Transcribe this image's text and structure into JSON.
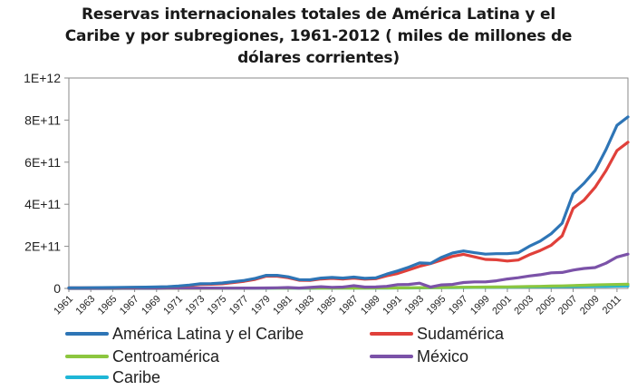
{
  "chart_data": {
    "type": "line",
    "title_lines": [
      "Reservas internacionales totales de América Latina y el",
      "Caribe y por subregiones, 1961-2012 ( miles de millones de",
      "dólares corrientes)"
    ],
    "xlabel": "",
    "ylabel": "",
    "ylim": [
      0,
      1000000000000
    ],
    "ytick_labels": [
      "0",
      "2E+11",
      "4E+11",
      "6E+11",
      "8E+11",
      "1E+12"
    ],
    "ytick_values": [
      0,
      200000000000,
      400000000000,
      600000000000,
      800000000000,
      1000000000000
    ],
    "x": [
      1961,
      1962,
      1963,
      1964,
      1965,
      1966,
      1967,
      1968,
      1969,
      1970,
      1971,
      1972,
      1973,
      1974,
      1975,
      1976,
      1977,
      1978,
      1979,
      1980,
      1981,
      1982,
      1983,
      1984,
      1985,
      1986,
      1987,
      1988,
      1989,
      1990,
      1991,
      1992,
      1993,
      1994,
      1995,
      1996,
      1997,
      1998,
      1999,
      2000,
      2001,
      2002,
      2003,
      2004,
      2005,
      2006,
      2007,
      2008,
      2009,
      2010,
      2011,
      2012
    ],
    "xtick_labels": [
      "1961",
      "1963",
      "1965",
      "1967",
      "1969",
      "1971",
      "1973",
      "1975",
      "1977",
      "1979",
      "1981",
      "1983",
      "1985",
      "1987",
      "1989",
      "1991",
      "1993",
      "1995",
      "1997",
      "1999",
      "2001",
      "2003",
      "2005",
      "2007",
      "2009",
      "2011"
    ],
    "grid": false,
    "legend_position": "bottom",
    "series": [
      {
        "name": "América Latina y el Caribe",
        "color": "#2e75b6",
        "values": [
          3000000000.0,
          3000000000.0,
          3500000000.0,
          4000000000.0,
          4500000000.0,
          5000000000.0,
          5500000000.0,
          6000000000.0,
          7000000000.0,
          8000000000.0,
          11000000000.0,
          16000000000.0,
          22000000000.0,
          23000000000.0,
          26000000000.0,
          32000000000.0,
          38000000000.0,
          48000000000.0,
          62000000000.0,
          62000000000.0,
          55000000000.0,
          42000000000.0,
          41000000000.0,
          49000000000.0,
          52000000000.0,
          49000000000.0,
          54000000000.0,
          48000000000.0,
          50000000000.0,
          68000000000.0,
          83000000000.0,
          101000000000.0,
          121000000000.0,
          119000000000.0,
          148000000000.0,
          168000000000.0,
          178000000000.0,
          170000000000.0,
          163000000000.0,
          165000000000.0,
          165000000000.0,
          170000000000.0,
          200000000000.0,
          225000000000.0,
          260000000000.0,
          310000000000.0,
          450000000000.0,
          500000000000.0,
          560000000000.0,
          660000000000.0,
          775000000000.0,
          815000000000.0
        ]
      },
      {
        "name": "Sudamérica",
        "color": "#e0403a",
        "values": [
          2500000000.0,
          2500000000.0,
          3000000000.0,
          3000000000.0,
          3500000000.0,
          4000000000.0,
          4500000000.0,
          5000000000.0,
          6000000000.0,
          7000000000.0,
          10000000000.0,
          14000000000.0,
          19000000000.0,
          20000000000.0,
          22000000000.0,
          28000000000.0,
          34000000000.0,
          43000000000.0,
          58000000000.0,
          58000000000.0,
          51000000000.0,
          39000000000.0,
          38000000000.0,
          45000000000.0,
          48000000000.0,
          45000000000.0,
          49000000000.0,
          44000000000.0,
          46000000000.0,
          60000000000.0,
          71000000000.0,
          88000000000.0,
          105000000000.0,
          118000000000.0,
          135000000000.0,
          152000000000.0,
          162000000000.0,
          150000000000.0,
          138000000000.0,
          136000000000.0,
          130000000000.0,
          135000000000.0,
          160000000000.0,
          180000000000.0,
          205000000000.0,
          250000000000.0,
          380000000000.0,
          420000000000.0,
          480000000000.0,
          560000000000.0,
          655000000000.0,
          695000000000.0
        ]
      },
      {
        "name": "Centroamérica",
        "color": "#8cc63f",
        "values": [
          200000000.0,
          200000000.0,
          200000000.0,
          200000000.0,
          200000000.0,
          300000000.0,
          300000000.0,
          300000000.0,
          300000000.0,
          300000000.0,
          400000000.0,
          400000000.0,
          500000000.0,
          600000000.0,
          700000000.0,
          800000000.0,
          1000000000.0,
          1200000000.0,
          1500000000.0,
          1500000000.0,
          1400000000.0,
          1300000000.0,
          1300000000.0,
          1400000000.0,
          1500000000.0,
          1600000000.0,
          1800000000.0,
          1900000000.0,
          2000000000.0,
          2200000000.0,
          2600000000.0,
          3000000000.0,
          3500000000.0,
          4000000000.0,
          4500000000.0,
          5000000000.0,
          5500000000.0,
          6000000000.0,
          6500000000.0,
          7000000000.0,
          7500000000.0,
          8000000000.0,
          9000000000.0,
          10000000000.0,
          11000000000.0,
          12000000000.0,
          14000000000.0,
          15000000000.0,
          17000000000.0,
          18000000000.0,
          19000000000.0,
          20000000000.0
        ]
      },
      {
        "name": "México",
        "color": "#7b52a8",
        "values": [
          500000000.0,
          500000000.0,
          600000000.0,
          600000000.0,
          700000000.0,
          800000000.0,
          800000000.0,
          900000000.0,
          1000000000.0,
          1100000000.0,
          1300000000.0,
          1500000000.0,
          1600000000.0,
          1600000000.0,
          1500000000.0,
          1300000000.0,
          1600000000.0,
          1800000000.0,
          2100000000.0,
          3000000000.0,
          4100000000.0,
          1800000000.0,
          4800000000.0,
          8000000000.0,
          5300000000.0,
          6600000000.0,
          13000000000.0,
          6300000000.0,
          6700000000.0,
          10000000000.0,
          18000000000.0,
          19000000000.0,
          25000000000.0,
          6300000000.0,
          17000000000.0,
          19000000000.0,
          28000000000.0,
          31000000000.0,
          31000000000.0,
          36000000000.0,
          45000000000.0,
          51000000000.0,
          59000000000.0,
          65000000000.0,
          74000000000.0,
          76000000000.0,
          87000000000.0,
          95000000000.0,
          99000000000.0,
          120000000000.0,
          149000000000.0,
          163000000000.0
        ]
      },
      {
        "name": "Caribe",
        "color": "#1fb6d6",
        "values": [
          100000000.0,
          100000000.0,
          100000000.0,
          100000000.0,
          200000000.0,
          200000000.0,
          200000000.0,
          200000000.0,
          200000000.0,
          300000000.0,
          300000000.0,
          400000000.0,
          500000000.0,
          600000000.0,
          600000000.0,
          700000000.0,
          800000000.0,
          900000000.0,
          1000000000.0,
          1100000000.0,
          1100000000.0,
          1000000000.0,
          1000000000.0,
          1100000000.0,
          1200000000.0,
          1300000000.0,
          1400000000.0,
          1500000000.0,
          1600000000.0,
          1800000000.0,
          2000000000.0,
          2300000000.0,
          2600000000.0,
          3000000000.0,
          3400000000.0,
          3800000000.0,
          4200000000.0,
          4600000000.0,
          5000000000.0,
          5500000000.0,
          6000000000.0,
          6500000000.0,
          7000000000.0,
          7500000000.0,
          8000000000.0,
          8500000000.0,
          9000000000.0,
          9500000000.0,
          10000000000.0,
          10500000000.0,
          11000000000.0,
          11500000000.0
        ]
      }
    ]
  }
}
